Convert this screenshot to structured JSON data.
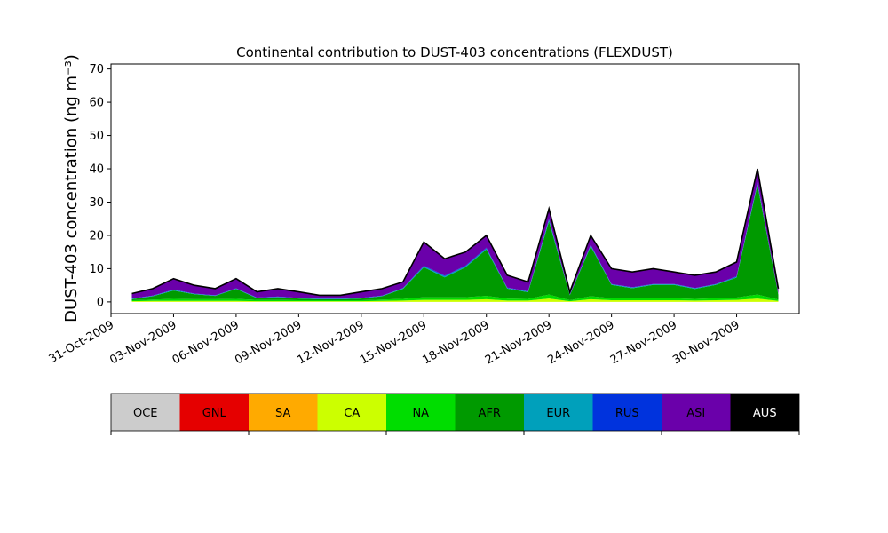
{
  "chart_data": {
    "type": "area",
    "stacked": true,
    "title": "Continental contribution to DUST-403 concentrations (FLEXDUST)",
    "ylabel": "DUST-403 concentration (ng m⁻³)",
    "xlabel": "",
    "x_start": "31-Oct-2009",
    "x_end": "03-Dec-2009",
    "ylim": [
      -3.5,
      71.5
    ],
    "y_ticks": [
      0,
      10,
      20,
      30,
      40,
      50,
      60,
      70
    ],
    "x_tick_labels": [
      "31-Oct-2009",
      "03-Nov-2009",
      "06-Nov-2009",
      "09-Nov-2009",
      "12-Nov-2009",
      "15-Nov-2009",
      "18-Nov-2009",
      "21-Nov-2009",
      "24-Nov-2009",
      "27-Nov-2009",
      "30-Nov-2009"
    ],
    "grid": false,
    "time_series": {
      "dates": [
        "01-Nov-2009",
        "02-Nov-2009",
        "03-Nov-2009",
        "04-Nov-2009",
        "05-Nov-2009",
        "06-Nov-2009",
        "07-Nov-2009",
        "08-Nov-2009",
        "09-Nov-2009",
        "10-Nov-2009",
        "11-Nov-2009",
        "12-Nov-2009",
        "13-Nov-2009",
        "14-Nov-2009",
        "15-Nov-2009",
        "16-Nov-2009",
        "17-Nov-2009",
        "18-Nov-2009",
        "19-Nov-2009",
        "20-Nov-2009",
        "21-Nov-2009",
        "22-Nov-2009",
        "23-Nov-2009",
        "24-Nov-2009",
        "25-Nov-2009",
        "26-Nov-2009",
        "27-Nov-2009",
        "28-Nov-2009",
        "29-Nov-2009",
        "30-Nov-2009",
        "01-Dec-2009",
        "02-Dec-2009"
      ],
      "total": [
        2.5,
        4,
        7,
        5,
        4,
        7,
        3,
        4,
        3,
        2,
        2,
        3,
        4,
        6,
        18,
        13,
        15,
        20,
        8,
        6,
        28,
        3,
        20,
        10,
        9,
        10,
        9,
        8,
        9,
        12,
        40,
        4
      ],
      "series": [
        {
          "name": "CA",
          "values": [
            0.2,
            0.3,
            0.3,
            0.3,
            0.3,
            0.3,
            0.2,
            0.2,
            0.2,
            0.2,
            0.2,
            0.2,
            0.3,
            0.4,
            0.6,
            0.6,
            0.6,
            0.8,
            0.4,
            0.4,
            1.0,
            0.2,
            0.8,
            0.5,
            0.5,
            0.5,
            0.5,
            0.4,
            0.5,
            0.6,
            1.0,
            0.3
          ]
        },
        {
          "name": "NA",
          "values": [
            0.3,
            0.4,
            0.6,
            0.5,
            0.5,
            0.6,
            0.4,
            0.4,
            0.3,
            0.3,
            0.3,
            0.3,
            0.4,
            0.5,
            0.8,
            0.8,
            0.8,
            1.0,
            0.6,
            0.5,
            1.2,
            0.3,
            0.9,
            0.6,
            0.6,
            0.6,
            0.6,
            0.5,
            0.6,
            0.7,
            1.2,
            0.4
          ]
        },
        {
          "name": "AFR",
          "values": [
            0.3,
            1.0,
            2.5,
            1.5,
            1.0,
            3.0,
            0.5,
            0.8,
            0.5,
            0.3,
            0.3,
            0.5,
            1.0,
            3.0,
            9.0,
            6.0,
            9.0,
            14.0,
            3.0,
            2.0,
            22.0,
            1.5,
            15.0,
            4.0,
            3.0,
            4.0,
            4.0,
            3.0,
            4.0,
            6.0,
            33.0,
            1.5
          ]
        },
        {
          "name": "EUR",
          "values": [
            0.1,
            0.1,
            0.2,
            0.1,
            0.1,
            0.1,
            0.1,
            0.1,
            0.1,
            0.1,
            0.1,
            0.1,
            0.1,
            0.2,
            0.3,
            0.3,
            0.3,
            0.3,
            0.2,
            0.2,
            0.5,
            0.1,
            0.3,
            0.2,
            0.2,
            0.2,
            0.2,
            0.2,
            0.2,
            0.2,
            0.4,
            0.1
          ]
        },
        {
          "name": "RUS",
          "values": [
            0.1,
            0.1,
            0.1,
            0.1,
            0.1,
            0.1,
            0.1,
            0.1,
            0.1,
            0.1,
            0.1,
            0.1,
            0.1,
            0.1,
            0.2,
            0.2,
            0.2,
            0.2,
            0.1,
            0.1,
            0.3,
            0.1,
            0.2,
            0.1,
            0.1,
            0.1,
            0.1,
            0.1,
            0.1,
            0.2,
            0.4,
            0.1
          ]
        },
        {
          "name": "ASI",
          "values": [
            1.5,
            2.1,
            3.3,
            2.5,
            2.0,
            2.9,
            1.7,
            2.4,
            1.8,
            1.0,
            1.0,
            1.8,
            2.1,
            1.8,
            7.1,
            5.1,
            4.1,
            3.7,
            3.7,
            2.8,
            3.0,
            0.8,
            2.8,
            4.6,
            4.6,
            4.6,
            3.6,
            3.8,
            3.6,
            4.3,
            4.0,
            1.6
          ]
        }
      ]
    },
    "legend": {
      "placement": "bottom",
      "items": [
        {
          "name": "OCE",
          "color": "#cccccc",
          "text_color": "#000000"
        },
        {
          "name": "GNL",
          "color": "#e50000",
          "text_color": "#000000"
        },
        {
          "name": "SA",
          "color": "#ffaa00",
          "text_color": "#000000"
        },
        {
          "name": "CA",
          "color": "#ccff00",
          "text_color": "#000000"
        },
        {
          "name": "NA",
          "color": "#00dd00",
          "text_color": "#000000"
        },
        {
          "name": "AFR",
          "color": "#009a00",
          "text_color": "#000000"
        },
        {
          "name": "EUR",
          "color": "#00a0bb",
          "text_color": "#000000"
        },
        {
          "name": "RUS",
          "color": "#0033dd",
          "text_color": "#000000"
        },
        {
          "name": "ASI",
          "color": "#6a00aa",
          "text_color": "#000000"
        },
        {
          "name": "AUS",
          "color": "#000000",
          "text_color": "#ffffff"
        }
      ]
    },
    "total_line_color": "#000000"
  }
}
